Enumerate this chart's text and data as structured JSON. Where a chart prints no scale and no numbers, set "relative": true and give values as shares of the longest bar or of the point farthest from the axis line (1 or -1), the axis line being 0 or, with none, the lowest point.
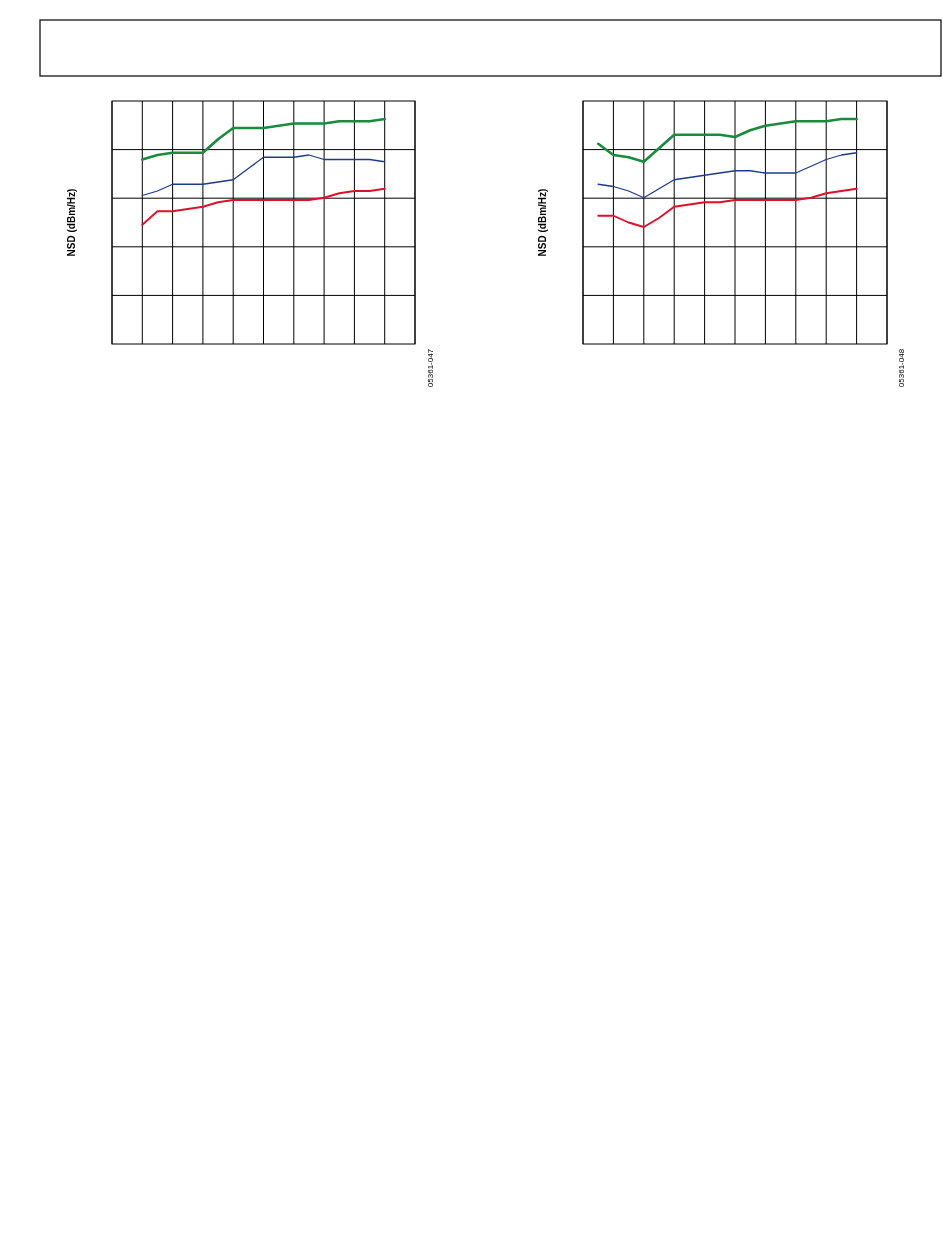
{
  "chart_data": [
    {
      "type": "line",
      "ylabel": "NSD (dBm/Hz)",
      "relative": true,
      "grid": true,
      "annotations": [
        "05361-047"
      ],
      "categories": [
        null,
        null,
        null,
        null,
        null,
        null,
        null,
        null,
        null,
        null,
        null,
        null,
        null,
        null,
        null,
        null,
        null,
        null,
        null,
        null,
        null
      ],
      "series": [
        {
          "color": "#1a8a3c",
          "values": [
            null,
            null,
            0.82,
            0.84,
            0.85,
            0.85,
            0.85,
            0.91,
            0.96,
            0.96,
            0.96,
            0.97,
            0.98,
            0.98,
            0.98,
            0.99,
            0.99,
            0.99,
            1,
            null,
            null
          ]
        },
        {
          "color": "#1f3a8a",
          "values": [
            null,
            null,
            0.66,
            0.68,
            0.71,
            0.71,
            0.71,
            0.72,
            0.73,
            0.78,
            0.83,
            0.83,
            0.83,
            0.84,
            0.82,
            0.82,
            0.82,
            0.82,
            0.81,
            null,
            null
          ]
        },
        {
          "color": "#e0102a",
          "values": [
            null,
            null,
            0.53,
            0.59,
            0.59,
            0.6,
            0.61,
            0.63,
            0.64,
            0.64,
            0.64,
            0.64,
            0.64,
            0.64,
            0.65,
            0.67,
            0.68,
            0.68,
            0.69,
            null,
            null
          ]
        }
      ]
    },
    {
      "type": "line",
      "ylabel": "NSD (dBm/Hz)",
      "relative": true,
      "grid": true,
      "annotations": [
        "05361-048"
      ],
      "categories": [
        null,
        null,
        null,
        null,
        null,
        null,
        null,
        null,
        null,
        null,
        null,
        null,
        null,
        null,
        null,
        null,
        null,
        null,
        null,
        null,
        null
      ],
      "series": [
        {
          "color": "#1a8a3c",
          "values": [
            null,
            0.89,
            0.84,
            0.83,
            0.81,
            0.87,
            0.93,
            0.93,
            0.93,
            0.93,
            0.92,
            0.95,
            0.97,
            0.98,
            0.99,
            0.99,
            0.99,
            1,
            1,
            null,
            null
          ]
        },
        {
          "color": "#1f3a8a",
          "values": [
            null,
            0.71,
            0.7,
            0.68,
            0.65,
            0.69,
            0.73,
            0.74,
            0.75,
            0.76,
            0.77,
            0.77,
            0.76,
            0.76,
            0.76,
            0.79,
            0.82,
            0.84,
            0.85,
            null,
            null
          ]
        },
        {
          "color": "#e0102a",
          "values": [
            null,
            0.57,
            0.57,
            0.54,
            0.52,
            0.56,
            0.61,
            0.62,
            0.63,
            0.63,
            0.64,
            0.64,
            0.64,
            0.64,
            0.64,
            0.65,
            0.67,
            0.68,
            0.69,
            null,
            null
          ]
        }
      ]
    }
  ]
}
